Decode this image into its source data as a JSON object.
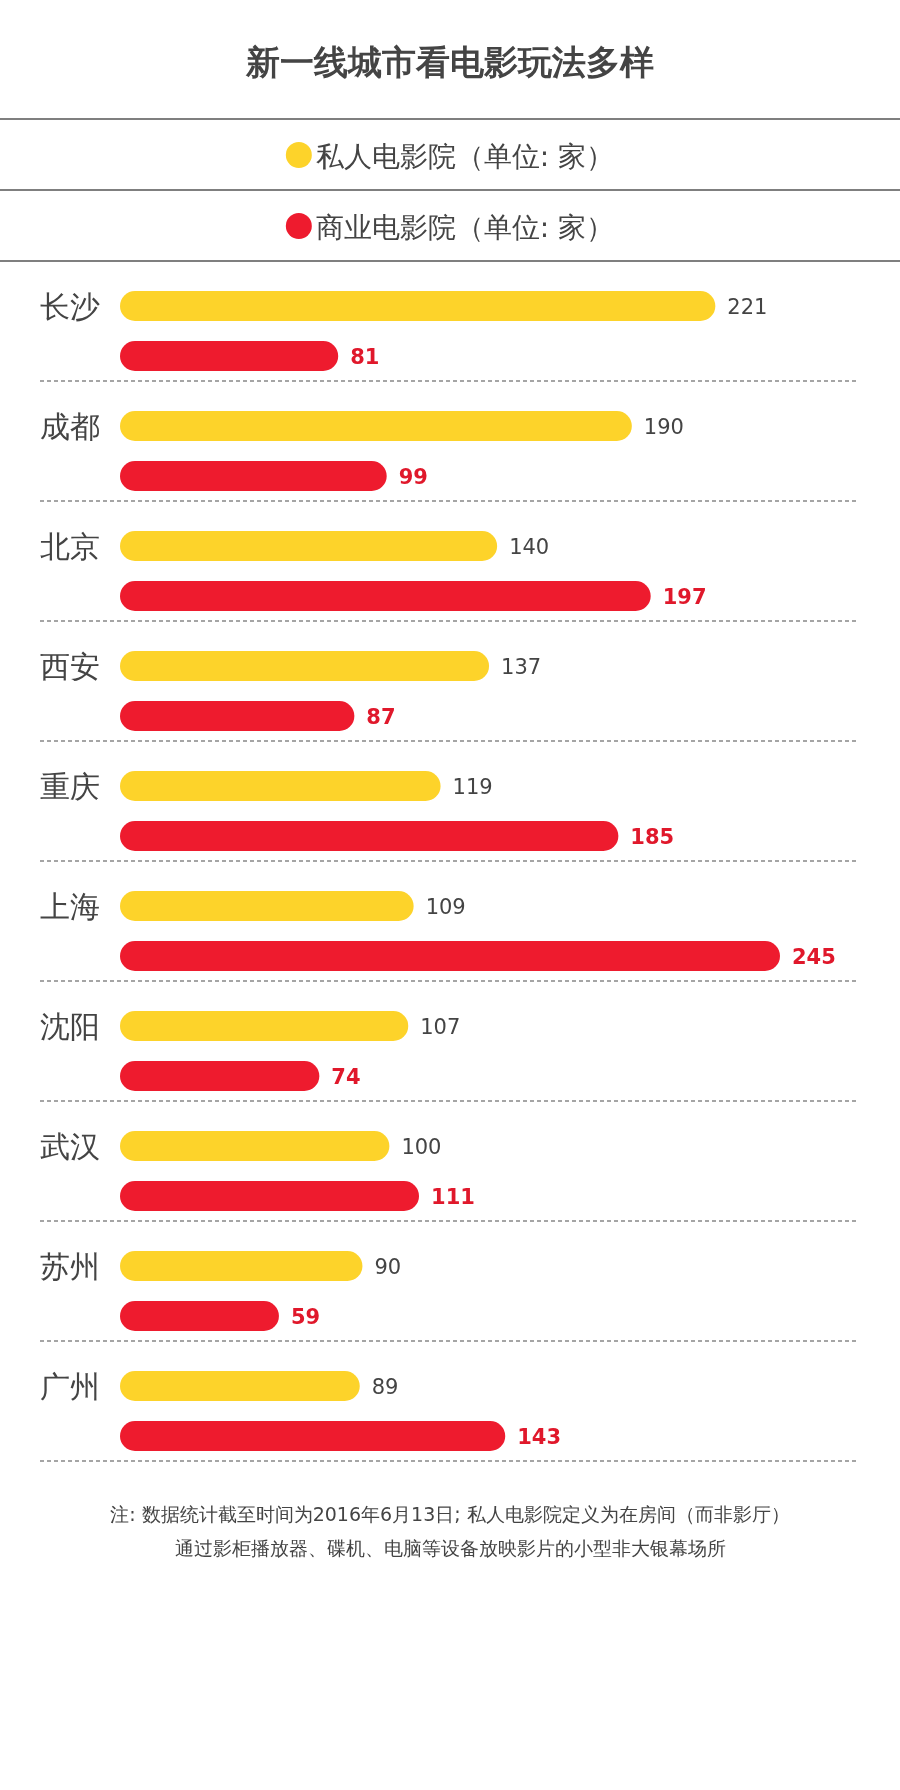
{
  "chart_data": {
    "type": "bar",
    "orientation": "horizontal",
    "title": "新一线城市看电影玩法多样",
    "categories": [
      "长沙",
      "成都",
      "北京",
      "西安",
      "重庆",
      "上海",
      "沈阳",
      "武汉",
      "苏州",
      "广州"
    ],
    "series": [
      {
        "name": "私人电影院（单位: 家）",
        "color": "#fdd32a",
        "values": [
          221,
          190,
          140,
          137,
          119,
          109,
          107,
          100,
          90,
          89
        ]
      },
      {
        "name": "商业电影院（单位: 家）",
        "color": "#ee1b2e",
        "values": [
          81,
          99,
          197,
          87,
          185,
          245,
          74,
          111,
          59,
          143
        ]
      }
    ],
    "data_labels": true,
    "legend": "top",
    "annotations": [
      "注: 数据统计截至时间为2016年6月13日; 私人电影院定义为在房间（而非影厅）",
      "通过影柜播放器、碟机、电脑等设备放映影片的小型非大银幕场所"
    ]
  }
}
